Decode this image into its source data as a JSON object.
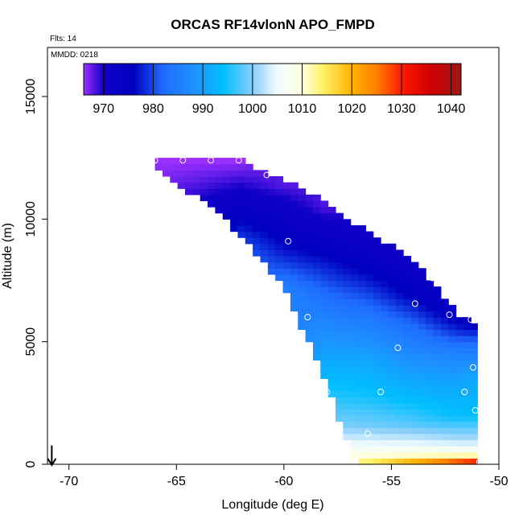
{
  "chart_data": {
    "type": "heatmap",
    "title": "ORCAS RF14vlonN APO_FMPD",
    "xlabel": "Longitude (deg E)",
    "ylabel": "Altitude (m)",
    "xlim": [
      -71,
      -50
    ],
    "ylim": [
      0,
      17000
    ],
    "x_ticks": [
      -70,
      -65,
      -60,
      -55,
      -50
    ],
    "y_ticks": [
      0,
      5000,
      10000,
      15000
    ],
    "x_tick_labels": [
      "-70",
      "-65",
      "-60",
      "-55",
      "-50"
    ],
    "y_tick_labels": [
      "0",
      "5000",
      "10000",
      "15000"
    ],
    "annotations": {
      "flights": "Flts: 14",
      "mmdd": "MMDD: 0218"
    },
    "colorbar": {
      "range": [
        966,
        1042
      ],
      "ticks": [
        970,
        980,
        990,
        1000,
        1010,
        1020,
        1030,
        1040
      ],
      "tick_labels": [
        "970",
        "980",
        "990",
        "1000",
        "1010",
        "1020",
        "1030",
        "1040"
      ],
      "stops": [
        {
          "v": 966,
          "c": "#9b30ff"
        },
        {
          "v": 970,
          "c": "#1000c8"
        },
        {
          "v": 976,
          "c": "#0000c0"
        },
        {
          "v": 982,
          "c": "#1f6cff"
        },
        {
          "v": 988,
          "c": "#1e90ff"
        },
        {
          "v": 994,
          "c": "#00bfff"
        },
        {
          "v": 1000,
          "c": "#87cefa"
        },
        {
          "v": 1005,
          "c": "#f0fbff"
        },
        {
          "v": 1010,
          "c": "#ffffe0"
        },
        {
          "v": 1014,
          "c": "#fff36b"
        },
        {
          "v": 1020,
          "c": "#ffb300"
        },
        {
          "v": 1025,
          "c": "#ff7f00"
        },
        {
          "v": 1030,
          "c": "#ff1a00"
        },
        {
          "v": 1036,
          "c": "#d00000"
        },
        {
          "v": 1042,
          "c": "#9b1a1a"
        }
      ]
    },
    "field": {
      "lon_min": -66.0,
      "lon_max": -51.0,
      "top_altitude": [
        {
          "lon": -66.0,
          "alt": 12400
        },
        {
          "lon": -62.0,
          "alt": 12400
        },
        {
          "lon": -59.0,
          "alt": 11200
        },
        {
          "lon": -56.5,
          "alt": 9700
        },
        {
          "lon": -54.0,
          "alt": 8400
        },
        {
          "lon": -52.0,
          "alt": 6200
        },
        {
          "lon": -51.0,
          "alt": 5700
        }
      ],
      "bottom_altitude": [
        {
          "lon": -66.0,
          "alt": 12000
        },
        {
          "lon": -63.0,
          "alt": 10300
        },
        {
          "lon": -60.0,
          "alt": 7200
        },
        {
          "lon": -58.0,
          "alt": 3300
        },
        {
          "lon": -57.0,
          "alt": 800
        },
        {
          "lon": -56.5,
          "alt": 0
        },
        {
          "lon": -51.0,
          "alt": 0
        }
      ],
      "profiles": [
        {
          "lon": -66,
          "levels": [
            {
              "alt": 12400,
              "v": 966
            },
            {
              "alt": 10500,
              "v": 968
            }
          ]
        },
        {
          "lon": -64,
          "levels": [
            {
              "alt": 12400,
              "v": 966
            },
            {
              "alt": 11500,
              "v": 968
            },
            {
              "alt": 10000,
              "v": 972
            }
          ]
        },
        {
          "lon": -62,
          "levels": [
            {
              "alt": 12400,
              "v": 966
            },
            {
              "alt": 11000,
              "v": 971
            },
            {
              "alt": 9500,
              "v": 978
            },
            {
              "alt": 8500,
              "v": 982
            }
          ]
        },
        {
          "lon": -60,
          "levels": [
            {
              "alt": 11400,
              "v": 968
            },
            {
              "alt": 10000,
              "v": 973
            },
            {
              "alt": 8500,
              "v": 978
            },
            {
              "alt": 7000,
              "v": 986
            }
          ]
        },
        {
          "lon": -58,
          "levels": [
            {
              "alt": 10500,
              "v": 968
            },
            {
              "alt": 9000,
              "v": 974
            },
            {
              "alt": 7000,
              "v": 982
            },
            {
              "alt": 5000,
              "v": 989
            },
            {
              "alt": 3000,
              "v": 995
            },
            {
              "alt": 1500,
              "v": 1000
            },
            {
              "alt": 500,
              "v": 1008
            },
            {
              "alt": 0,
              "v": 1011
            }
          ]
        },
        {
          "lon": -56,
          "levels": [
            {
              "alt": 9500,
              "v": 970
            },
            {
              "alt": 8000,
              "v": 975
            },
            {
              "alt": 6000,
              "v": 984
            },
            {
              "alt": 4500,
              "v": 990
            },
            {
              "alt": 3000,
              "v": 994
            },
            {
              "alt": 1600,
              "v": 999
            },
            {
              "alt": 700,
              "v": 1006
            },
            {
              "alt": 300,
              "v": 1011
            },
            {
              "alt": 0,
              "v": 1016
            }
          ]
        },
        {
          "lon": -54,
          "levels": [
            {
              "alt": 8400,
              "v": 971
            },
            {
              "alt": 7000,
              "v": 975
            },
            {
              "alt": 5500,
              "v": 983
            },
            {
              "alt": 4000,
              "v": 989
            },
            {
              "alt": 2800,
              "v": 993
            },
            {
              "alt": 1600,
              "v": 998
            },
            {
              "alt": 700,
              "v": 1006
            },
            {
              "alt": 300,
              "v": 1012
            },
            {
              "alt": 0,
              "v": 1025
            }
          ]
        },
        {
          "lon": -52,
          "levels": [
            {
              "alt": 6500,
              "v": 972
            },
            {
              "alt": 5500,
              "v": 978
            },
            {
              "alt": 4500,
              "v": 986
            },
            {
              "alt": 3200,
              "v": 991
            },
            {
              "alt": 2000,
              "v": 994
            },
            {
              "alt": 1000,
              "v": 1002
            },
            {
              "alt": 400,
              "v": 1010
            },
            {
              "alt": 0,
              "v": 1034
            }
          ]
        },
        {
          "lon": -51,
          "levels": [
            {
              "alt": 5800,
              "v": 974
            },
            {
              "alt": 4800,
              "v": 984
            },
            {
              "alt": 3500,
              "v": 991
            },
            {
              "alt": 2000,
              "v": 994
            },
            {
              "alt": 1000,
              "v": 1002
            },
            {
              "alt": 400,
              "v": 1010
            },
            {
              "alt": 0,
              "v": 1038
            }
          ]
        }
      ]
    },
    "points": [
      {
        "lon": -66.0,
        "alt": 12400
      },
      {
        "lon": -64.7,
        "alt": 12400
      },
      {
        "lon": -63.4,
        "alt": 12400
      },
      {
        "lon": -62.1,
        "alt": 12400
      },
      {
        "lon": -60.8,
        "alt": 11800
      },
      {
        "lon": -59.8,
        "alt": 9100
      },
      {
        "lon": -58.9,
        "alt": 6000
      },
      {
        "lon": -58.0,
        "alt": 2950
      },
      {
        "lon": -56.1,
        "alt": 1250
      },
      {
        "lon": -55.5,
        "alt": 2950
      },
      {
        "lon": -54.7,
        "alt": 4750
      },
      {
        "lon": -53.9,
        "alt": 6550
      },
      {
        "lon": -53.1,
        "alt": 7600
      },
      {
        "lon": -52.3,
        "alt": 6100
      },
      {
        "lon": -51.6,
        "alt": 2950
      },
      {
        "lon": -51.3,
        "alt": 5900
      },
      {
        "lon": -51.2,
        "alt": 3950
      },
      {
        "lon": -51.1,
        "alt": 2200
      },
      {
        "lon": -50.9,
        "alt": 100
      }
    ],
    "arrow": {
      "lon": -70.8,
      "alt_from": 700,
      "alt_to": 0
    }
  }
}
